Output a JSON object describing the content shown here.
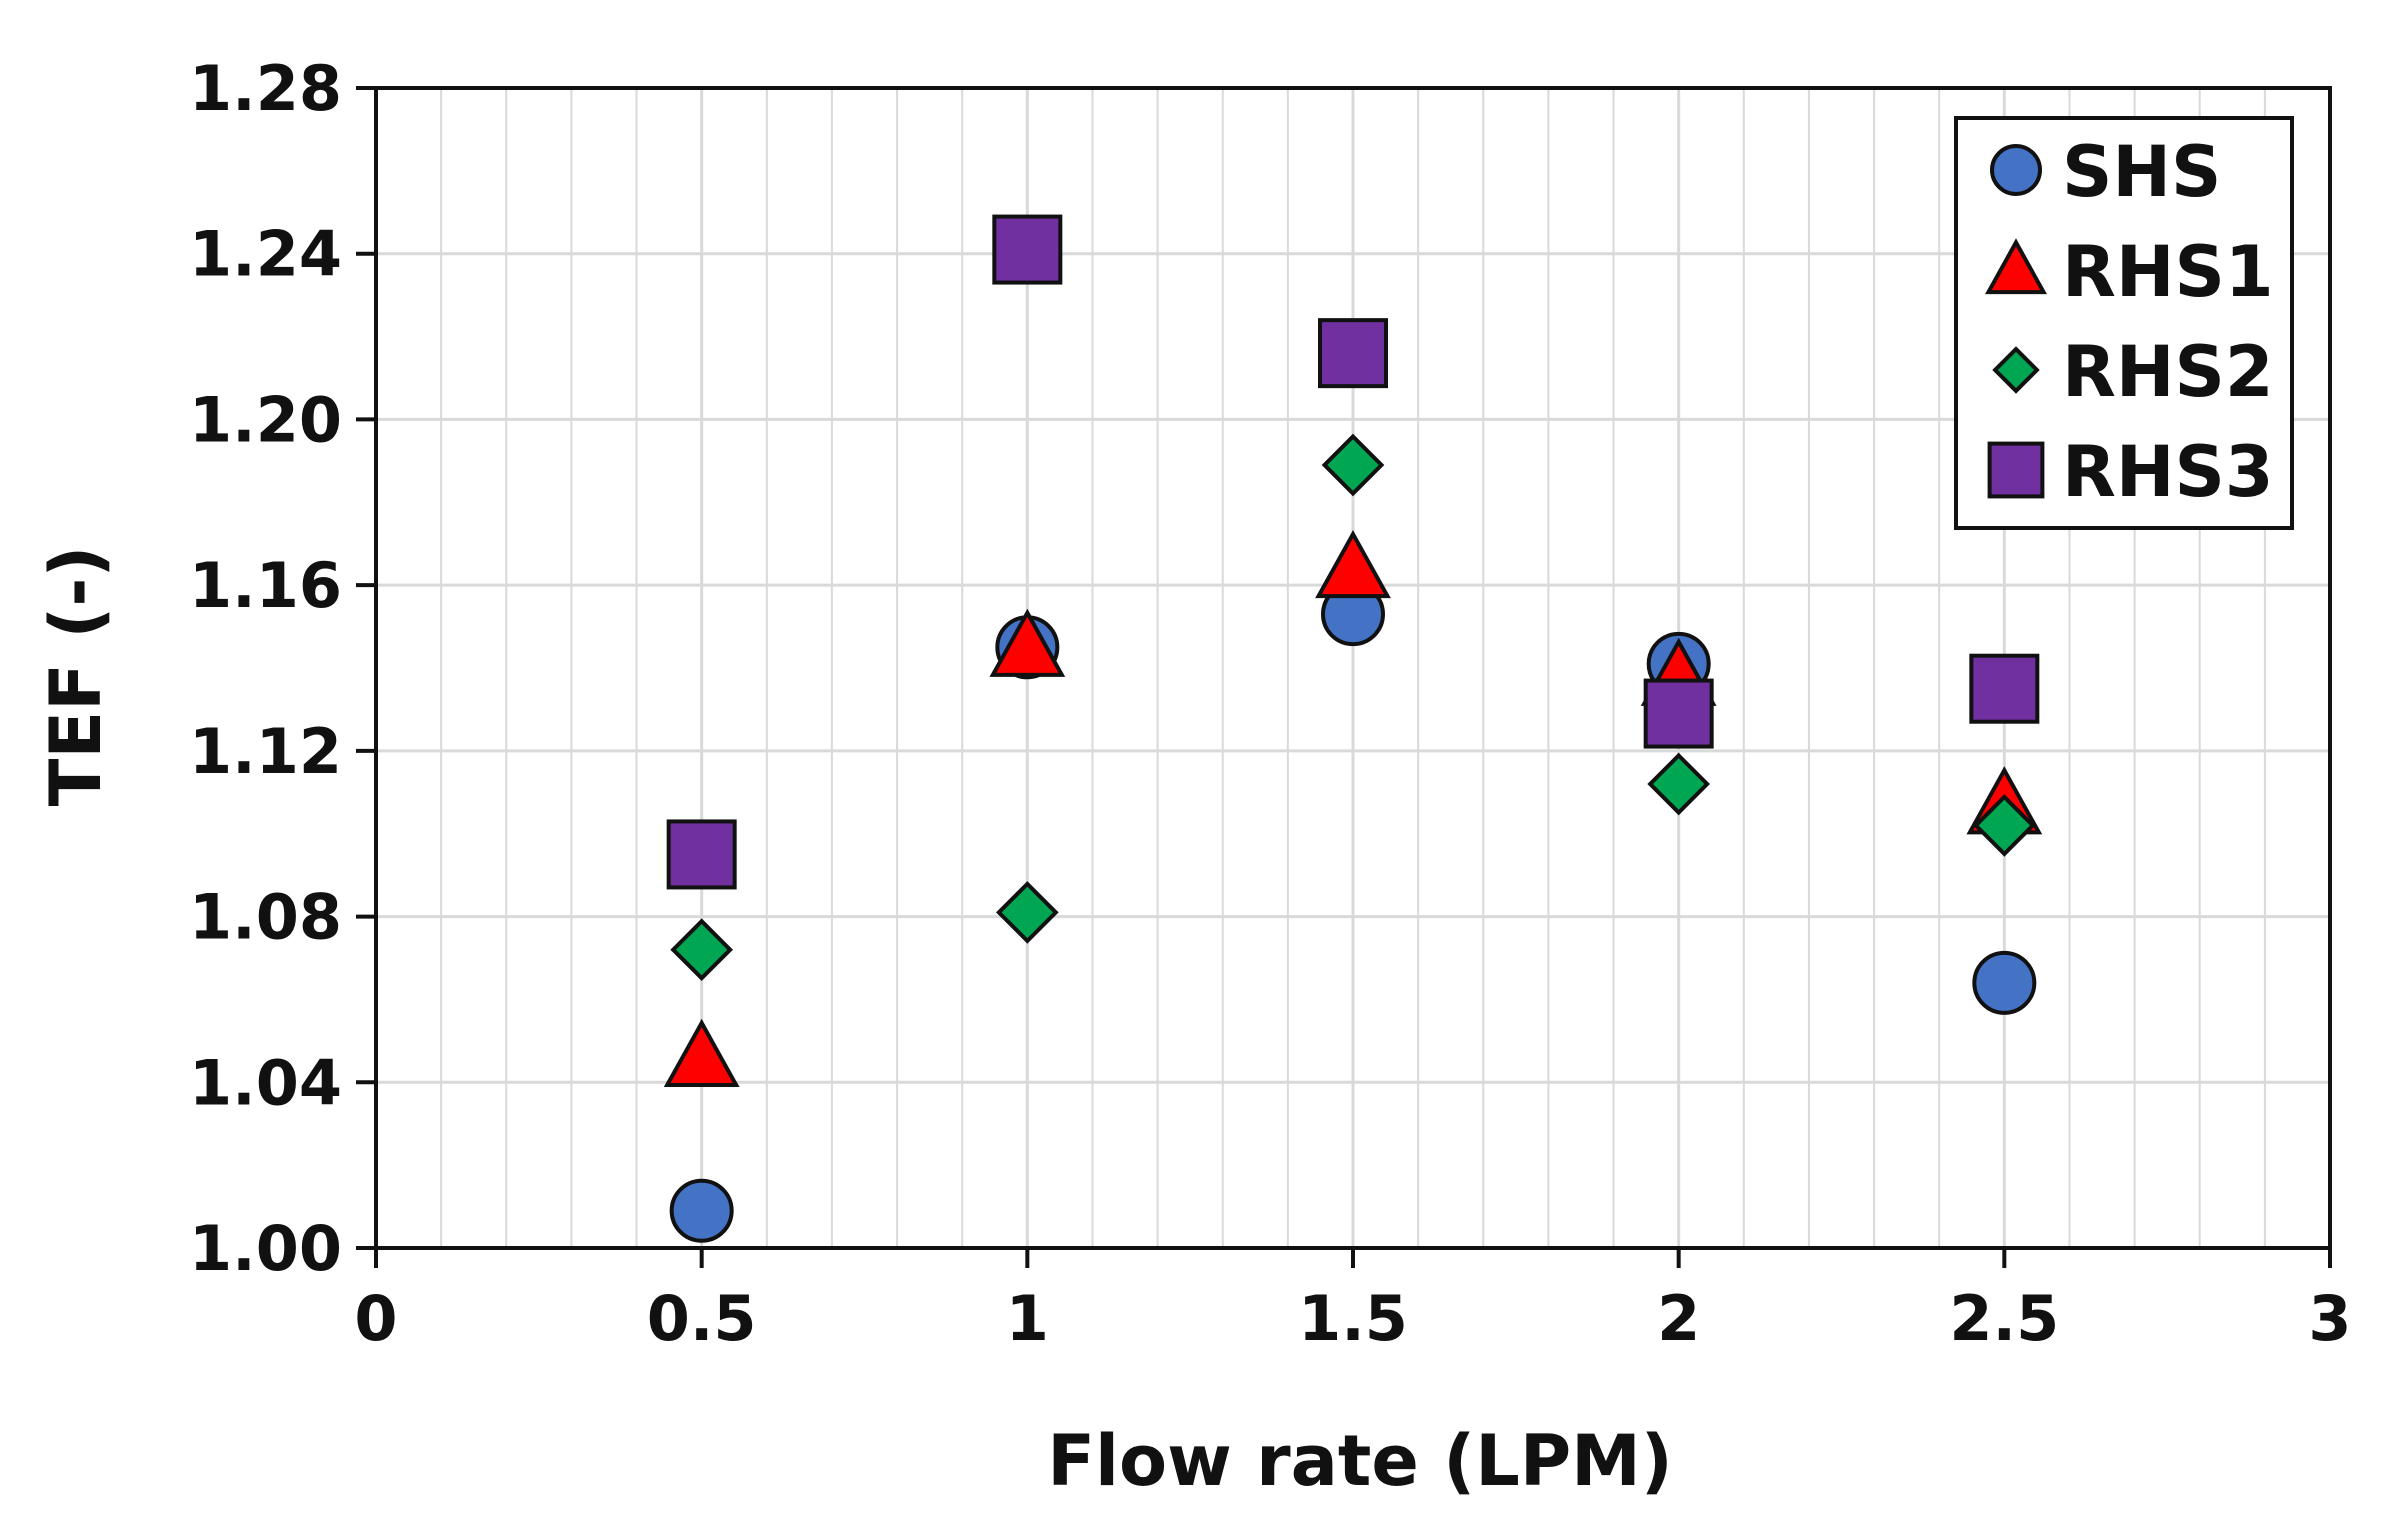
{
  "chart_data": {
    "type": "scatter",
    "title": "",
    "xlabel": "Flow rate (LPM)",
    "ylabel": "TEF (-)",
    "xlim": [
      0,
      3
    ],
    "ylim": [
      1.0,
      1.28
    ],
    "x_ticks": [
      "0",
      "0.5",
      "1",
      "1.5",
      "2",
      "2.5",
      "3"
    ],
    "y_ticks": [
      "1.00",
      "1.04",
      "1.08",
      "1.12",
      "1.16",
      "1.20",
      "1.24",
      "1.28"
    ],
    "grid": true,
    "legend_position": "top-right",
    "series": [
      {
        "name": "SHS",
        "marker": "circle",
        "color": "#4472C4",
        "x": [
          0.5,
          1,
          1.5,
          2,
          2.5
        ],
        "y": [
          1.009,
          1.145,
          1.153,
          1.141,
          1.064
        ]
      },
      {
        "name": "RHS1",
        "marker": "triangle",
        "color": "#FF0000",
        "x": [
          0.5,
          1,
          1.5,
          2,
          2.5
        ],
        "y": [
          1.046,
          1.145,
          1.164,
          1.138,
          1.107
        ]
      },
      {
        "name": "RHS2",
        "marker": "diamond",
        "color": "#00A651",
        "x": [
          0.5,
          1,
          1.5,
          2,
          2.5
        ],
        "y": [
          1.072,
          1.081,
          1.189,
          1.112,
          1.102
        ]
      },
      {
        "name": "RHS3",
        "marker": "square",
        "color": "#7030A0",
        "x": [
          0.5,
          1,
          1.5,
          2,
          2.5
        ],
        "y": [
          1.095,
          1.241,
          1.216,
          1.129,
          1.135
        ]
      }
    ]
  }
}
